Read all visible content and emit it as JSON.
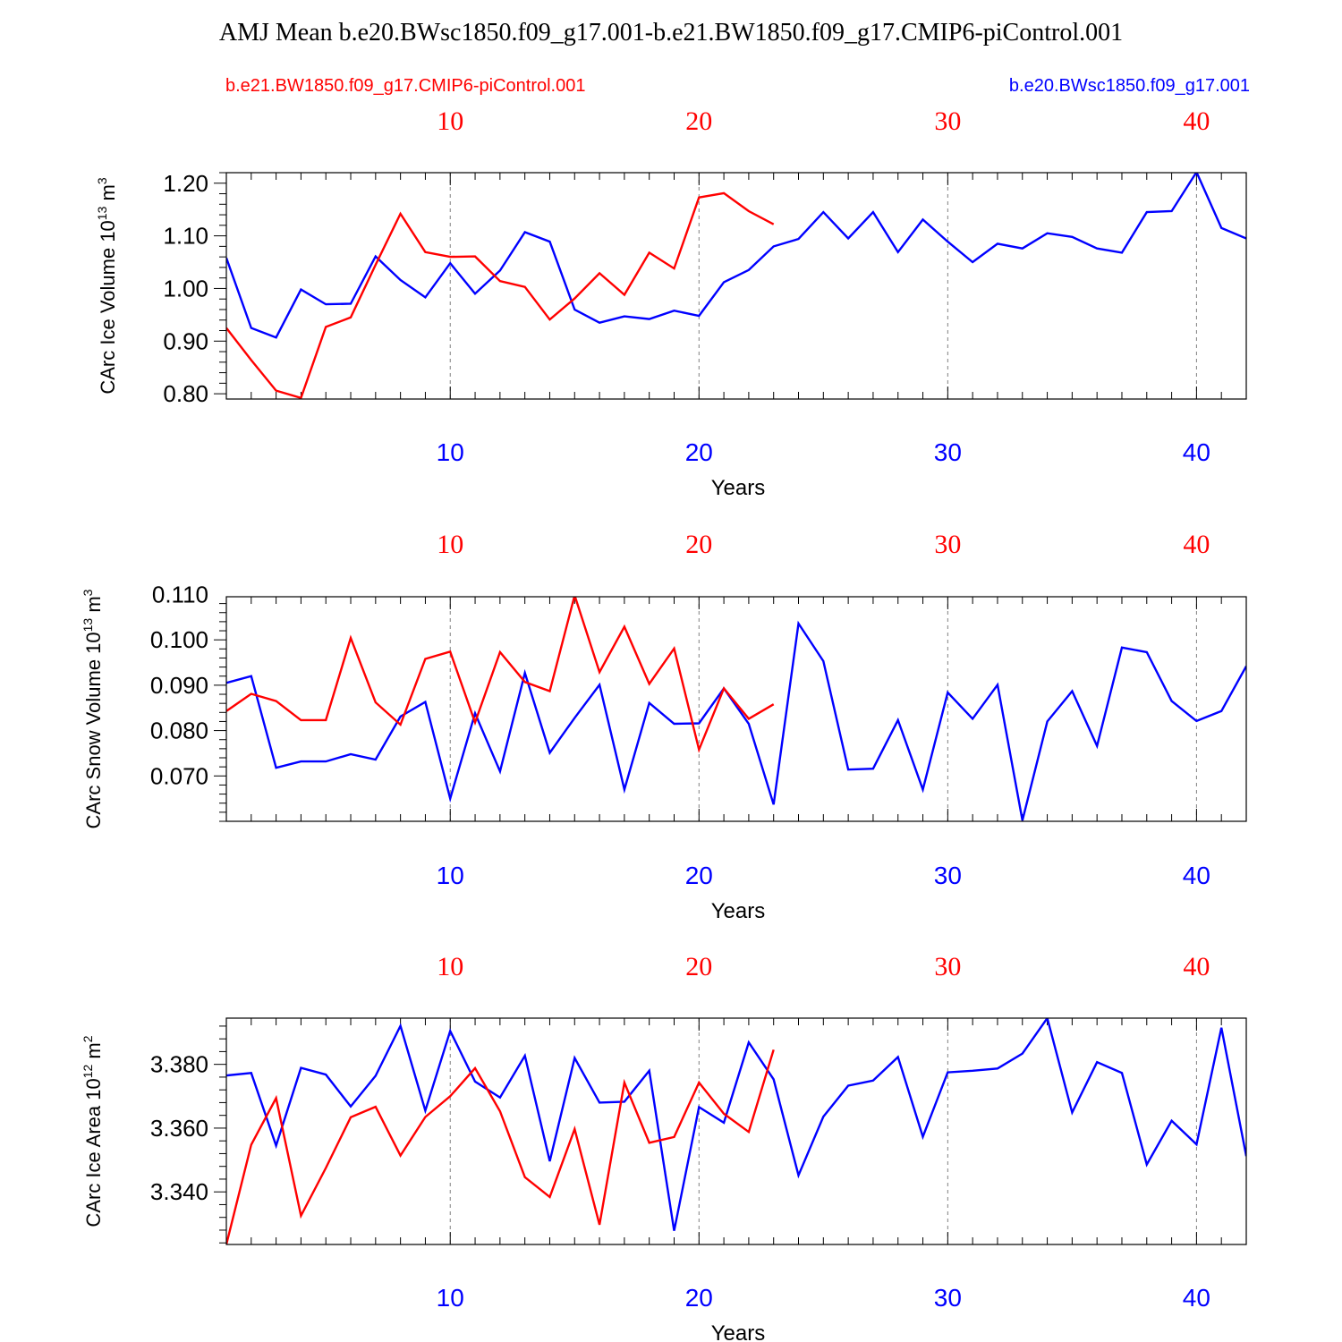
{
  "title": "AMJ Mean b.e20.BWsc1850.f09_g17.001-b.e21.BW1850.f09_g17.CMIP6-piControl.001",
  "legend": {
    "red_case": "b.e21.BW1850.f09_g17.CMIP6-piControl.001",
    "blue_case": "b.e20.BWsc1850.f09_g17.001"
  },
  "colors": {
    "red": "#ff0000",
    "blue": "#0000ff",
    "axis": "#000000",
    "grid": "#7f7f7f"
  },
  "chart_data": [
    {
      "type": "line",
      "ylabel_main": "CArc Ice Volume 10",
      "ylabel_exp": "13",
      "ylabel_unit": " m",
      "ylabel_unit_exp": "3",
      "xlabel": "Years",
      "xlim": [
        1,
        42
      ],
      "ylim": [
        0.79,
        1.22
      ],
      "yticks": [
        0.8,
        0.9,
        1.0,
        1.1,
        1.2
      ],
      "ytick_labels": [
        "0.80",
        "0.90",
        "1.00",
        "1.10",
        "1.20"
      ],
      "xticks": [
        10,
        20,
        30,
        40
      ],
      "xtick_labels": [
        "10",
        "20",
        "30",
        "40"
      ],
      "series": [
        {
          "name": "b.e20.BWsc1850.f09_g17.001",
          "color": "blue",
          "values": [
            1.058,
            0.925,
            0.907,
            0.998,
            0.97,
            0.971,
            1.061,
            1.016,
            0.983,
            1.048,
            0.99,
            1.034,
            1.107,
            1.089,
            0.96,
            0.935,
            0.947,
            0.942,
            0.958,
            0.948,
            1.012,
            1.035,
            1.08,
            1.094,
            1.145,
            1.095,
            1.145,
            1.069,
            1.131,
            1.089,
            1.05,
            1.085,
            1.076,
            1.105,
            1.098,
            1.076,
            1.068,
            1.145,
            1.147,
            1.221,
            1.115,
            1.095
          ]
        },
        {
          "name": "b.e21.BW1850.f09_g17.CMIP6-piControl.001",
          "color": "red",
          "values": [
            0.925,
            0.864,
            0.806,
            0.792,
            0.927,
            0.945,
            1.045,
            1.142,
            1.069,
            1.06,
            1.061,
            1.014,
            1.003,
            0.941,
            0.981,
            1.029,
            0.988,
            1.068,
            1.038,
            1.173,
            1.181,
            1.147,
            1.122
          ]
        }
      ]
    },
    {
      "type": "line",
      "ylabel_main": "CArc Snow Volume 10",
      "ylabel_exp": "13",
      "ylabel_unit": " m",
      "ylabel_unit_exp": "3",
      "xlabel": "Years",
      "xlim": [
        1,
        42
      ],
      "ylim": [
        0.06,
        0.1095
      ],
      "yticks": [
        0.07,
        0.08,
        0.09,
        0.1,
        0.11
      ],
      "ytick_labels": [
        "0.070",
        "0.080",
        "0.090",
        "0.100",
        "0.110"
      ],
      "xticks": [
        10,
        20,
        30,
        40
      ],
      "xtick_labels": [
        "10",
        "20",
        "30",
        "40"
      ],
      "series": [
        {
          "name": "b.e20.BWsc1850.f09_g17.001",
          "color": "blue",
          "values": [
            0.0905,
            0.092,
            0.0718,
            0.0732,
            0.0732,
            0.0748,
            0.0736,
            0.0831,
            0.0863,
            0.065,
            0.0838,
            0.071,
            0.0927,
            0.0751,
            0.0828,
            0.0901,
            0.067,
            0.0861,
            0.0815,
            0.0816,
            0.0893,
            0.0815,
            0.0637,
            0.1036,
            0.0953,
            0.0714,
            0.0716,
            0.0823,
            0.067,
            0.0884,
            0.0826,
            0.0901,
            0.0602,
            0.082,
            0.0887,
            0.0766,
            0.0983,
            0.0973,
            0.0865,
            0.0821,
            0.0843,
            0.0942
          ]
        },
        {
          "name": "b.e21.BW1850.f09_g17.CMIP6-piControl.001",
          "color": "red",
          "values": [
            0.0843,
            0.0881,
            0.0865,
            0.0823,
            0.0823,
            0.1004,
            0.0862,
            0.0813,
            0.0958,
            0.0974,
            0.0818,
            0.0973,
            0.0907,
            0.0887,
            0.1098,
            0.0929,
            0.1029,
            0.0903,
            0.0981,
            0.0758,
            0.0893,
            0.0826,
            0.0858
          ]
        }
      ]
    },
    {
      "type": "line",
      "ylabel_main": "CArc Ice Area 10",
      "ylabel_exp": "12",
      "ylabel_unit": " m",
      "ylabel_unit_exp": "2",
      "xlabel": "Years",
      "xlim": [
        1,
        42
      ],
      "ylim": [
        3.3235,
        3.3945
      ],
      "yticks": [
        3.34,
        3.36,
        3.38
      ],
      "ytick_labels": [
        "3.340",
        "3.360",
        "3.380"
      ],
      "xticks": [
        10,
        20,
        30,
        40
      ],
      "xtick_labels": [
        "10",
        "20",
        "30",
        "40"
      ],
      "series": [
        {
          "name": "b.e20.BWsc1850.f09_g17.001",
          "color": "blue",
          "values": [
            3.3765,
            3.3773,
            3.3545,
            3.3789,
            3.3768,
            3.3668,
            3.3764,
            3.3921,
            3.3655,
            3.3905,
            3.3746,
            3.3696,
            3.3827,
            3.3496,
            3.382,
            3.368,
            3.3683,
            3.378,
            3.3278,
            3.3666,
            3.3617,
            3.3869,
            3.3753,
            3.3452,
            3.3636,
            3.3733,
            3.3749,
            3.3823,
            3.3573,
            3.3775,
            3.378,
            3.3787,
            3.3834,
            3.3945,
            3.3649,
            3.3807,
            3.3773,
            3.3486,
            3.3623,
            3.3549,
            3.3915,
            3.3512
          ]
        },
        {
          "name": "b.e21.BW1850.f09_g17.CMIP6-piControl.001",
          "color": "red",
          "values": [
            3.3235,
            3.3548,
            3.3694,
            3.3325,
            3.3475,
            3.3634,
            3.3667,
            3.3514,
            3.3635,
            3.37,
            3.3788,
            3.3653,
            3.3446,
            3.3384,
            3.3597,
            3.3297,
            3.3743,
            3.3554,
            3.3572,
            3.3743,
            3.3645,
            3.3588,
            3.3846
          ]
        }
      ]
    }
  ]
}
